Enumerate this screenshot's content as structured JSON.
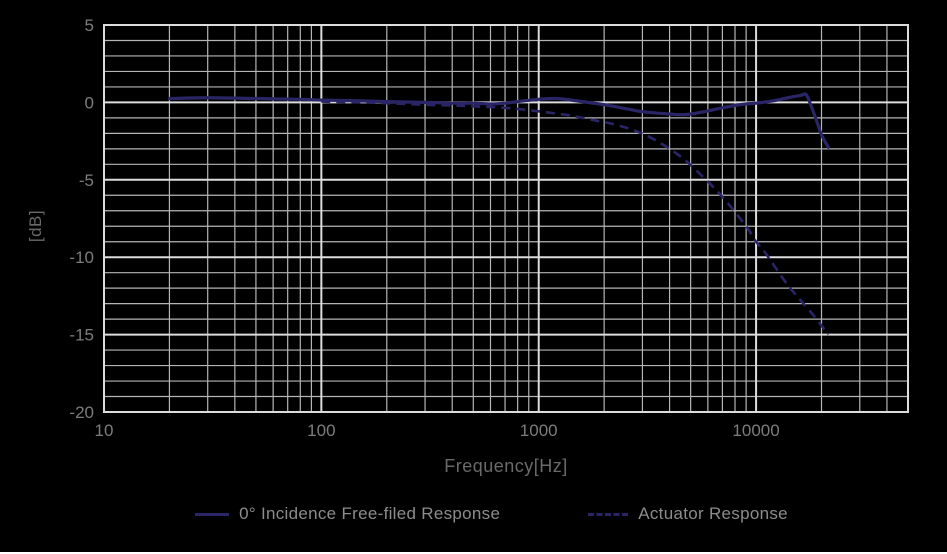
{
  "figure": {
    "background": "#000000",
    "bottom_rule_color": "#ffffff"
  },
  "colors": {
    "line": "#2a2566",
    "grid_minor": "#b5b5b5",
    "grid_major": "#dcdcdc",
    "tick_label": "#7d7d7d",
    "axis_label": "#6a6a6a",
    "legend_text": "#8c8c8c"
  },
  "chart_data": {
    "type": "line",
    "title": "",
    "xlabel": "Frequency[Hz]",
    "ylabel": "[dB]",
    "x_scale": "log",
    "xlim": [
      10,
      50000
    ],
    "ylim": [
      -20,
      5
    ],
    "x_ticks_labeled": [
      10,
      100,
      1000,
      10000
    ],
    "y_ticks_labeled": [
      5,
      0,
      -5,
      -10,
      -15,
      -20
    ],
    "y_minor_step": 1,
    "grid": true,
    "legend_position": "bottom",
    "series": [
      {
        "name": "0° Incidence Free-filed Response",
        "style": "solid",
        "color": "#2a2566",
        "points": [
          [
            20,
            0.25
          ],
          [
            30,
            0.3
          ],
          [
            50,
            0.25
          ],
          [
            80,
            0.2
          ],
          [
            100,
            0.15
          ],
          [
            150,
            0.1
          ],
          [
            200,
            0.05
          ],
          [
            300,
            0.0
          ],
          [
            400,
            -0.05
          ],
          [
            500,
            -0.05
          ],
          [
            600,
            -0.1
          ],
          [
            700,
            -0.05
          ],
          [
            800,
            0.05
          ],
          [
            1000,
            0.2
          ],
          [
            1200,
            0.25
          ],
          [
            1500,
            0.1
          ],
          [
            2000,
            -0.15
          ],
          [
            2500,
            -0.4
          ],
          [
            3000,
            -0.6
          ],
          [
            4000,
            -0.75
          ],
          [
            4500,
            -0.8
          ],
          [
            5000,
            -0.75
          ],
          [
            6000,
            -0.55
          ],
          [
            7000,
            -0.35
          ],
          [
            8000,
            -0.2
          ],
          [
            9000,
            -0.1
          ],
          [
            10000,
            -0.05
          ],
          [
            12000,
            0.1
          ],
          [
            14000,
            0.3
          ],
          [
            16000,
            0.45
          ],
          [
            17000,
            0.5
          ],
          [
            18000,
            -0.3
          ],
          [
            19000,
            -1.2
          ],
          [
            20000,
            -2.1
          ],
          [
            21500,
            -2.9
          ]
        ]
      },
      {
        "name": "Actuator Response",
        "style": "dashed",
        "color": "#2a2566",
        "points": [
          [
            100,
            0.05
          ],
          [
            150,
            0.0
          ],
          [
            200,
            -0.05
          ],
          [
            300,
            -0.15
          ],
          [
            400,
            -0.2
          ],
          [
            500,
            -0.25
          ],
          [
            700,
            -0.35
          ],
          [
            900,
            -0.5
          ],
          [
            1100,
            -0.65
          ],
          [
            1400,
            -0.85
          ],
          [
            1800,
            -1.15
          ],
          [
            2200,
            -1.4
          ],
          [
            2800,
            -1.85
          ],
          [
            3500,
            -2.5
          ],
          [
            4500,
            -3.5
          ],
          [
            5500,
            -4.6
          ],
          [
            7000,
            -6.1
          ],
          [
            9000,
            -8.0
          ],
          [
            10000,
            -9.0
          ],
          [
            11000,
            -9.7
          ],
          [
            14000,
            -11.8
          ],
          [
            18000,
            -13.6
          ],
          [
            21500,
            -15.0
          ]
        ]
      }
    ]
  }
}
